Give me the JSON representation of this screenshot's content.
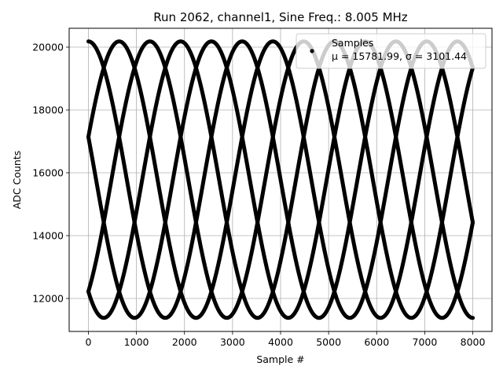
{
  "chart_data": {
    "type": "scatter",
    "title": "Run 2062, channel1, Sine Freq.: 8.005 MHz",
    "xlabel": "Sample #",
    "ylabel": "ADC Counts",
    "xlim": [
      -400,
      8400
    ],
    "ylim": [
      10950,
      20600
    ],
    "xticks": [
      0,
      1000,
      2000,
      3000,
      4000,
      5000,
      6000,
      7000,
      8000
    ],
    "yticks": [
      12000,
      14000,
      16000,
      18000,
      20000
    ],
    "grid": true,
    "legend": {
      "placement": "top-right",
      "entries": [
        {
          "label": "Samples",
          "stats": "μ = 15781.99, σ = 3101.44"
        }
      ]
    },
    "series": [
      {
        "name": "Samples",
        "color": "#000000",
        "mean": 15781.99,
        "amplitude": 4400,
        "period_samples": 3200,
        "phases_deg": [
          90,
          162,
          234,
          306,
          18
        ],
        "x_range": [
          0,
          8000
        ]
      }
    ]
  }
}
